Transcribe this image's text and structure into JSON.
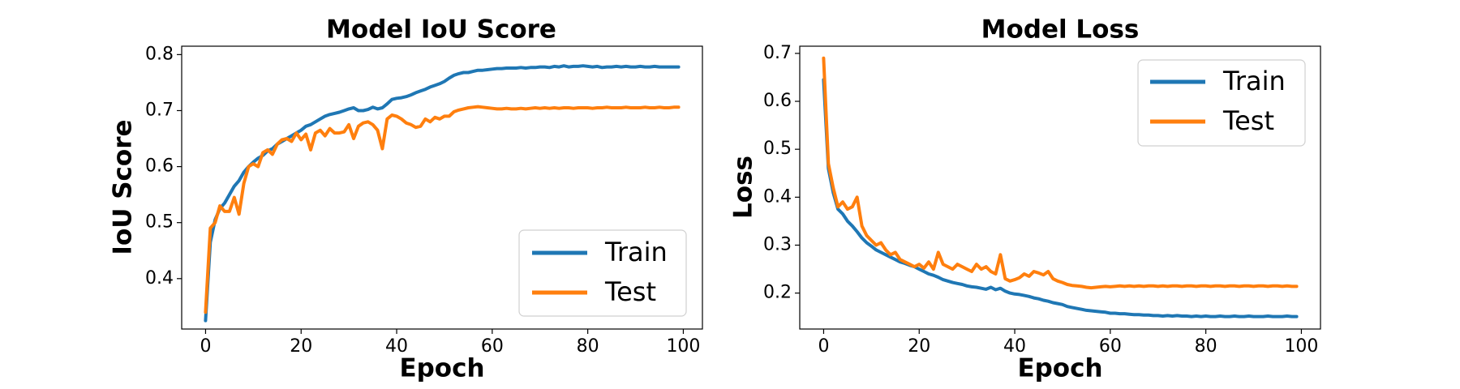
{
  "chart_data": [
    {
      "type": "line",
      "title": "Model IoU Score",
      "xlabel": "Epoch",
      "ylabel": "IoU Score",
      "xlim": [
        -5,
        104
      ],
      "ylim": [
        0.31,
        0.815
      ],
      "xticks": [
        0,
        20,
        40,
        60,
        80,
        100
      ],
      "yticks": [
        0.4,
        0.5,
        0.6,
        0.7,
        0.8
      ],
      "xtick_labels": [
        "0",
        "20",
        "40",
        "60",
        "80",
        "100"
      ],
      "ytick_labels": [
        "0.4",
        "0.5",
        "0.6",
        "0.7",
        "0.8"
      ],
      "legend_position": "lower-right",
      "grid": false,
      "series": [
        {
          "name": "Train",
          "color": "#1f77b4",
          "x": [
            0,
            1,
            2,
            3,
            4,
            5,
            6,
            7,
            8,
            9,
            10,
            11,
            12,
            13,
            14,
            15,
            16,
            17,
            18,
            19,
            20,
            21,
            22,
            23,
            24,
            25,
            26,
            27,
            28,
            29,
            30,
            31,
            32,
            33,
            34,
            35,
            36,
            37,
            38,
            39,
            40,
            41,
            42,
            43,
            44,
            45,
            46,
            47,
            48,
            49,
            50,
            51,
            52,
            53,
            54,
            55,
            56,
            57,
            58,
            59,
            60,
            61,
            62,
            63,
            64,
            65,
            66,
            67,
            68,
            69,
            70,
            71,
            72,
            73,
            74,
            75,
            76,
            77,
            78,
            79,
            80,
            81,
            82,
            83,
            84,
            85,
            86,
            87,
            88,
            89,
            90,
            91,
            92,
            93,
            94,
            95,
            96,
            97,
            98,
            99
          ],
          "y": [
            0.325,
            0.465,
            0.505,
            0.525,
            0.535,
            0.55,
            0.565,
            0.575,
            0.59,
            0.6,
            0.608,
            0.615,
            0.62,
            0.628,
            0.632,
            0.64,
            0.645,
            0.65,
            0.655,
            0.66,
            0.665,
            0.672,
            0.675,
            0.68,
            0.685,
            0.69,
            0.693,
            0.695,
            0.697,
            0.7,
            0.703,
            0.705,
            0.7,
            0.7,
            0.702,
            0.706,
            0.703,
            0.705,
            0.712,
            0.72,
            0.722,
            0.723,
            0.725,
            0.728,
            0.732,
            0.735,
            0.738,
            0.742,
            0.745,
            0.748,
            0.752,
            0.758,
            0.763,
            0.766,
            0.768,
            0.768,
            0.77,
            0.772,
            0.772,
            0.773,
            0.774,
            0.775,
            0.775,
            0.776,
            0.776,
            0.776,
            0.777,
            0.776,
            0.777,
            0.777,
            0.778,
            0.778,
            0.777,
            0.779,
            0.778,
            0.78,
            0.778,
            0.779,
            0.779,
            0.78,
            0.779,
            0.778,
            0.779,
            0.777,
            0.778,
            0.778,
            0.779,
            0.778,
            0.779,
            0.778,
            0.778,
            0.779,
            0.778,
            0.778,
            0.779,
            0.778,
            0.778,
            0.778,
            0.778,
            0.778
          ]
        },
        {
          "name": "Test",
          "color": "#ff7f0e",
          "x": [
            0,
            1,
            2,
            3,
            4,
            5,
            6,
            7,
            8,
            9,
            10,
            11,
            12,
            13,
            14,
            15,
            16,
            17,
            18,
            19,
            20,
            21,
            22,
            23,
            24,
            25,
            26,
            27,
            28,
            29,
            30,
            31,
            32,
            33,
            34,
            35,
            36,
            37,
            38,
            39,
            40,
            41,
            42,
            43,
            44,
            45,
            46,
            47,
            48,
            49,
            50,
            51,
            52,
            53,
            54,
            55,
            56,
            57,
            58,
            59,
            60,
            61,
            62,
            63,
            64,
            65,
            66,
            67,
            68,
            69,
            70,
            71,
            72,
            73,
            74,
            75,
            76,
            77,
            78,
            79,
            80,
            81,
            82,
            83,
            84,
            85,
            86,
            87,
            88,
            89,
            90,
            91,
            92,
            93,
            94,
            95,
            96,
            97,
            98,
            99
          ],
          "y": [
            0.34,
            0.49,
            0.5,
            0.53,
            0.52,
            0.52,
            0.545,
            0.515,
            0.57,
            0.6,
            0.605,
            0.6,
            0.625,
            0.63,
            0.622,
            0.64,
            0.648,
            0.65,
            0.645,
            0.66,
            0.648,
            0.658,
            0.63,
            0.66,
            0.665,
            0.655,
            0.668,
            0.66,
            0.66,
            0.662,
            0.675,
            0.65,
            0.672,
            0.678,
            0.68,
            0.675,
            0.665,
            0.632,
            0.685,
            0.692,
            0.69,
            0.685,
            0.678,
            0.675,
            0.67,
            0.672,
            0.685,
            0.68,
            0.688,
            0.685,
            0.69,
            0.69,
            0.698,
            0.701,
            0.703,
            0.705,
            0.706,
            0.707,
            0.706,
            0.705,
            0.704,
            0.703,
            0.703,
            0.704,
            0.703,
            0.703,
            0.704,
            0.703,
            0.704,
            0.705,
            0.704,
            0.705,
            0.704,
            0.705,
            0.704,
            0.705,
            0.705,
            0.704,
            0.705,
            0.705,
            0.705,
            0.704,
            0.705,
            0.705,
            0.706,
            0.705,
            0.705,
            0.705,
            0.706,
            0.705,
            0.705,
            0.705,
            0.706,
            0.705,
            0.705,
            0.706,
            0.705,
            0.705,
            0.706,
            0.706
          ]
        }
      ]
    },
    {
      "type": "line",
      "title": "Model Loss",
      "xlabel": "Epoch",
      "ylabel": "Loss",
      "xlim": [
        -5,
        104
      ],
      "ylim": [
        0.125,
        0.715
      ],
      "xticks": [
        0,
        20,
        40,
        60,
        80,
        100
      ],
      "yticks": [
        0.2,
        0.3,
        0.4,
        0.5,
        0.6,
        0.7
      ],
      "xtick_labels": [
        "0",
        "20",
        "40",
        "60",
        "80",
        "100"
      ],
      "ytick_labels": [
        "0.2",
        "0.3",
        "0.4",
        "0.5",
        "0.6",
        "0.7"
      ],
      "legend_position": "upper-right",
      "grid": false,
      "series": [
        {
          "name": "Train",
          "color": "#1f77b4",
          "x": [
            0,
            1,
            2,
            3,
            4,
            5,
            6,
            7,
            8,
            9,
            10,
            11,
            12,
            13,
            14,
            15,
            16,
            17,
            18,
            19,
            20,
            21,
            22,
            23,
            24,
            25,
            26,
            27,
            28,
            29,
            30,
            31,
            32,
            33,
            34,
            35,
            36,
            37,
            38,
            39,
            40,
            41,
            42,
            43,
            44,
            45,
            46,
            47,
            48,
            49,
            50,
            51,
            52,
            53,
            54,
            55,
            56,
            57,
            58,
            59,
            60,
            61,
            62,
            63,
            64,
            65,
            66,
            67,
            68,
            69,
            70,
            71,
            72,
            73,
            74,
            75,
            76,
            77,
            78,
            79,
            80,
            81,
            82,
            83,
            84,
            85,
            86,
            87,
            88,
            89,
            90,
            91,
            92,
            93,
            94,
            95,
            96,
            97,
            98,
            99
          ],
          "y": [
            0.645,
            0.46,
            0.41,
            0.375,
            0.365,
            0.35,
            0.34,
            0.328,
            0.315,
            0.305,
            0.298,
            0.29,
            0.285,
            0.28,
            0.275,
            0.27,
            0.265,
            0.262,
            0.258,
            0.255,
            0.25,
            0.245,
            0.24,
            0.237,
            0.233,
            0.228,
            0.225,
            0.222,
            0.22,
            0.218,
            0.215,
            0.213,
            0.212,
            0.21,
            0.208,
            0.212,
            0.207,
            0.21,
            0.204,
            0.2,
            0.198,
            0.197,
            0.195,
            0.193,
            0.19,
            0.188,
            0.185,
            0.183,
            0.18,
            0.178,
            0.176,
            0.172,
            0.17,
            0.168,
            0.166,
            0.164,
            0.163,
            0.162,
            0.161,
            0.16,
            0.158,
            0.158,
            0.157,
            0.157,
            0.156,
            0.155,
            0.155,
            0.154,
            0.154,
            0.153,
            0.153,
            0.152,
            0.153,
            0.152,
            0.153,
            0.152,
            0.152,
            0.151,
            0.152,
            0.151,
            0.152,
            0.151,
            0.151,
            0.152,
            0.151,
            0.151,
            0.152,
            0.151,
            0.151,
            0.152,
            0.151,
            0.151,
            0.151,
            0.152,
            0.151,
            0.151,
            0.151,
            0.152,
            0.151,
            0.151
          ]
        },
        {
          "name": "Test",
          "color": "#ff7f0e",
          "x": [
            0,
            1,
            2,
            3,
            4,
            5,
            6,
            7,
            8,
            9,
            10,
            11,
            12,
            13,
            14,
            15,
            16,
            17,
            18,
            19,
            20,
            21,
            22,
            23,
            24,
            25,
            26,
            27,
            28,
            29,
            30,
            31,
            32,
            33,
            34,
            35,
            36,
            37,
            38,
            39,
            40,
            41,
            42,
            43,
            44,
            45,
            46,
            47,
            48,
            49,
            50,
            51,
            52,
            53,
            54,
            55,
            56,
            57,
            58,
            59,
            60,
            61,
            62,
            63,
            64,
            65,
            66,
            67,
            68,
            69,
            70,
            71,
            72,
            73,
            74,
            75,
            76,
            77,
            78,
            79,
            80,
            81,
            82,
            83,
            84,
            85,
            86,
            87,
            88,
            89,
            90,
            91,
            92,
            93,
            94,
            95,
            96,
            97,
            98,
            99
          ],
          "y": [
            0.69,
            0.47,
            0.42,
            0.38,
            0.39,
            0.375,
            0.38,
            0.4,
            0.34,
            0.32,
            0.31,
            0.3,
            0.305,
            0.29,
            0.28,
            0.285,
            0.27,
            0.265,
            0.26,
            0.255,
            0.26,
            0.252,
            0.265,
            0.25,
            0.285,
            0.26,
            0.255,
            0.25,
            0.26,
            0.255,
            0.25,
            0.245,
            0.26,
            0.25,
            0.255,
            0.245,
            0.24,
            0.28,
            0.23,
            0.225,
            0.228,
            0.232,
            0.24,
            0.235,
            0.245,
            0.242,
            0.238,
            0.245,
            0.23,
            0.225,
            0.222,
            0.218,
            0.216,
            0.215,
            0.214,
            0.212,
            0.211,
            0.212,
            0.213,
            0.214,
            0.213,
            0.214,
            0.215,
            0.214,
            0.215,
            0.214,
            0.215,
            0.214,
            0.215,
            0.215,
            0.214,
            0.215,
            0.214,
            0.215,
            0.215,
            0.214,
            0.215,
            0.215,
            0.214,
            0.215,
            0.215,
            0.214,
            0.215,
            0.215,
            0.214,
            0.215,
            0.215,
            0.214,
            0.215,
            0.215,
            0.214,
            0.215,
            0.215,
            0.214,
            0.215,
            0.215,
            0.214,
            0.215,
            0.214,
            0.214
          ]
        }
      ]
    }
  ]
}
